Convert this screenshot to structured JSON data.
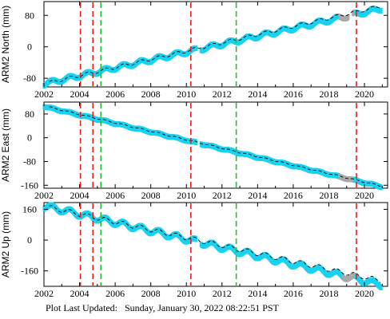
{
  "footer": {
    "label": "Plot Last Updated:",
    "value": "Sunday, January 30, 2022 08:22:51 PST"
  },
  "colors": {
    "data": "#19d3f0",
    "model": "#000000",
    "event_red": "#ee1c1c",
    "event_green": "#22c02a",
    "outlier": "#aaaaaa"
  },
  "chart_data": [
    {
      "type": "scatter",
      "ylabel": "ARM2 North (mm)",
      "xlim": [
        2002,
        2021.3
      ],
      "ylim": [
        -102,
        115
      ],
      "x_ticks": [
        2002,
        2004,
        2006,
        2008,
        2010,
        2012,
        2014,
        2016,
        2018,
        2020
      ],
      "y_ticks": [
        80,
        0,
        -80
      ],
      "x_tick_labels": [
        "2002",
        "2004",
        "2006",
        "2008",
        "2010",
        "2012",
        "2014",
        "2016",
        "2018",
        "2020"
      ],
      "y_tick_labels": [
        "80",
        "0",
        "-80"
      ],
      "series": [
        {
          "kind": "data",
          "data_start": 2002,
          "data_end": 2020.95,
          "y_start": -94,
          "y_end": 97,
          "seasonal_amp": 5,
          "gaps": [
            [
              2010.55,
              2010.8
            ],
            [
              2019.1,
              2019.35
            ]
          ],
          "outlier_range": [
            2018.6,
            2019.5
          ]
        },
        {
          "kind": "model",
          "line_start": 2002.3,
          "line_end": 2020.9,
          "y_start": -91,
          "y_end": 103,
          "seasonal_amp": 4,
          "dashed": true
        }
      ],
      "events_red": [
        2004.05,
        2004.75,
        2010.25,
        2019.55
      ],
      "events_green": [
        2005.2,
        2012.8
      ]
    },
    {
      "type": "scatter",
      "ylabel": "ARM2 East (mm)",
      "xlim": [
        2002,
        2021.3
      ],
      "ylim": [
        -170,
        120
      ],
      "x_ticks": [
        2002,
        2004,
        2006,
        2008,
        2010,
        2012,
        2014,
        2016,
        2018,
        2020
      ],
      "y_ticks": [
        80,
        0,
        -80,
        -160
      ],
      "x_tick_labels": [
        "2002",
        "2004",
        "2006",
        "2008",
        "2010",
        "2012",
        "2014",
        "2016",
        "2018",
        "2020"
      ],
      "y_tick_labels": [
        "80",
        "0",
        "-80",
        "-160"
      ],
      "series": [
        {
          "kind": "data",
          "data_start": 2002,
          "data_end": 2020.95,
          "y_start": 105,
          "y_end": -165,
          "seasonal_amp": 2,
          "gaps": [
            [
              2010.55,
              2010.8
            ]
          ],
          "outlier_range": [
            2018.6,
            2019.4
          ]
        },
        {
          "kind": "model",
          "line_start": 2002.3,
          "line_end": 2020.9,
          "y_start": 103,
          "y_end": -162,
          "seasonal_amp": 2,
          "dashed": true
        }
      ],
      "events_red": [
        2004.05,
        2004.75,
        2010.25,
        2019.55
      ],
      "events_green": [
        2005.2,
        2012.8
      ]
    },
    {
      "type": "scatter",
      "ylabel": "ARM2 Up (mm)",
      "xlim": [
        2002,
        2021.3
      ],
      "ylim": [
        -240,
        195
      ],
      "x_ticks": [
        2002,
        2004,
        2006,
        2008,
        2010,
        2012,
        2014,
        2016,
        2018,
        2020
      ],
      "y_ticks": [
        160,
        0,
        -160
      ],
      "x_tick_labels": [
        "2002",
        "2004",
        "2006",
        "2008",
        "2010",
        "2012",
        "2014",
        "2016",
        "2018",
        "2020"
      ],
      "y_tick_labels": [
        "160",
        "0",
        "-160"
      ],
      "series": [
        {
          "kind": "data",
          "data_start": 2002,
          "data_end": 2020.95,
          "y_start": 178,
          "y_end": -232,
          "seasonal_amp": 14,
          "gaps": [
            [
              2010.55,
              2010.8
            ]
          ],
          "outlier_range": [
            2018.8,
            2019.5
          ]
        },
        {
          "kind": "model",
          "line_start": 2002.3,
          "line_end": 2020.9,
          "y_start": 170,
          "y_end": -210,
          "seasonal_amp": 12,
          "dashed": true
        }
      ],
      "events_red": [
        2004.05,
        2004.75,
        2010.25,
        2019.55
      ],
      "events_green": [
        2005.2,
        2012.8
      ]
    }
  ]
}
